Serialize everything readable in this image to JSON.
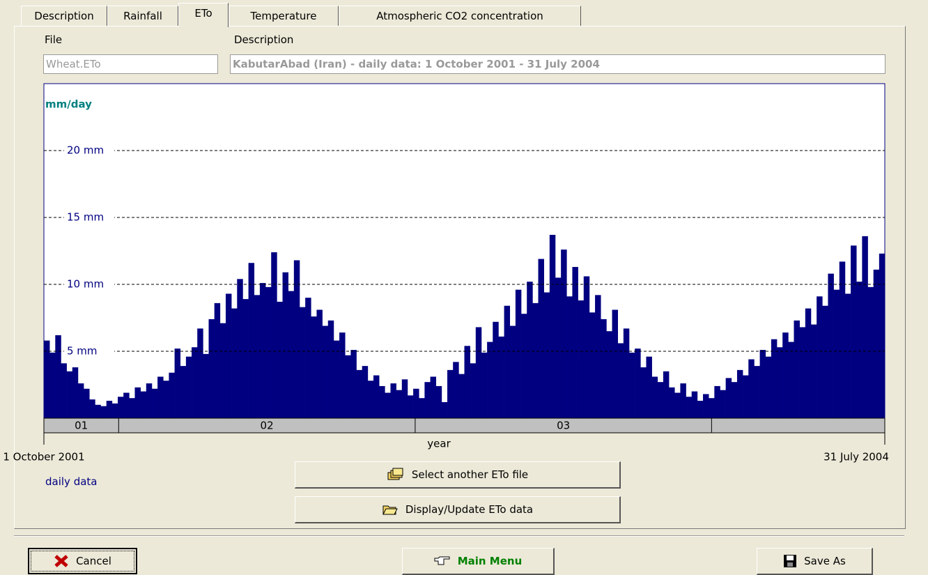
{
  "tabs": [
    "Description",
    "Rainfall",
    "ETo",
    "Temperature",
    "Atmospheric CO2 concentration"
  ],
  "file_label": "File",
  "file_value": "Wheat.ETo",
  "description_label": "Description",
  "description_value": "KabutarAbad (Iran) - daily data: 1 October 2001 - 31 July 2004",
  "buttons": {
    "select": "Select another ETo file",
    "display": "Display/Update ETo data",
    "cancel": "Cancel",
    "main_menu": "Main Menu",
    "save_as": "Save As"
  },
  "chart_data": {
    "type": "bar",
    "y_label": "mm/day",
    "x_label": "year",
    "x_start": "1 October 2001",
    "x_end": "31 July 2004",
    "note": "daily data",
    "color": "#000080",
    "grid": true,
    "ylim": [
      0,
      25
    ],
    "yticks": [
      {
        "value": 5,
        "label": "5 mm"
      },
      {
        "value": 10,
        "label": "10 mm"
      },
      {
        "value": 15,
        "label": "15 mm"
      },
      {
        "value": 20,
        "label": "20 mm"
      }
    ],
    "year_labels": [
      "01",
      "02",
      "03",
      null
    ],
    "values": [
      5.8,
      4.9,
      6.2,
      4.1,
      3.5,
      3.8,
      2.6,
      2.2,
      1.4,
      1.0,
      0.9,
      1.3,
      1.1,
      1.6,
      1.9,
      1.5,
      2.3,
      2.0,
      2.6,
      2.2,
      3.1,
      2.8,
      3.4,
      5.2,
      3.9,
      4.6,
      5.3,
      6.7,
      4.8,
      7.4,
      8.6,
      7.1,
      9.3,
      8.2,
      10.4,
      8.9,
      11.6,
      9.2,
      10.1,
      9.8,
      12.4,
      8.7,
      10.9,
      9.5,
      11.8,
      8.3,
      9.0,
      7.6,
      8.1,
      6.9,
      7.3,
      5.8,
      6.4,
      4.7,
      5.1,
      3.6,
      3.9,
      2.8,
      3.2,
      2.4,
      1.9,
      2.6,
      2.1,
      2.9,
      1.7,
      2.2,
      1.5,
      2.7,
      3.1,
      2.4,
      1.2,
      3.6,
      4.2,
      3.3,
      5.4,
      4.1,
      6.8,
      4.9,
      5.7,
      7.2,
      6.1,
      8.4,
      6.9,
      9.6,
      7.8,
      10.2,
      8.6,
      11.9,
      9.4,
      13.7,
      10.5,
      12.6,
      9.1,
      11.3,
      8.8,
      10.6,
      7.9,
      9.2,
      7.4,
      6.5,
      8.1,
      5.6,
      6.7,
      4.9,
      5.2,
      3.8,
      4.6,
      3.1,
      2.7,
      3.5,
      2.3,
      1.9,
      2.6,
      1.6,
      2.0,
      1.3,
      1.8,
      1.5,
      2.4,
      2.1,
      3.0,
      2.7,
      3.6,
      3.2,
      4.4,
      3.9,
      5.1,
      4.6,
      5.9,
      5.3,
      6.4,
      5.7,
      7.3,
      6.8,
      8.2,
      7.0,
      9.1,
      8.4,
      10.8,
      9.6,
      11.7,
      9.3,
      12.9,
      10.2,
      13.6,
      9.8,
      11.1,
      12.3
    ]
  }
}
